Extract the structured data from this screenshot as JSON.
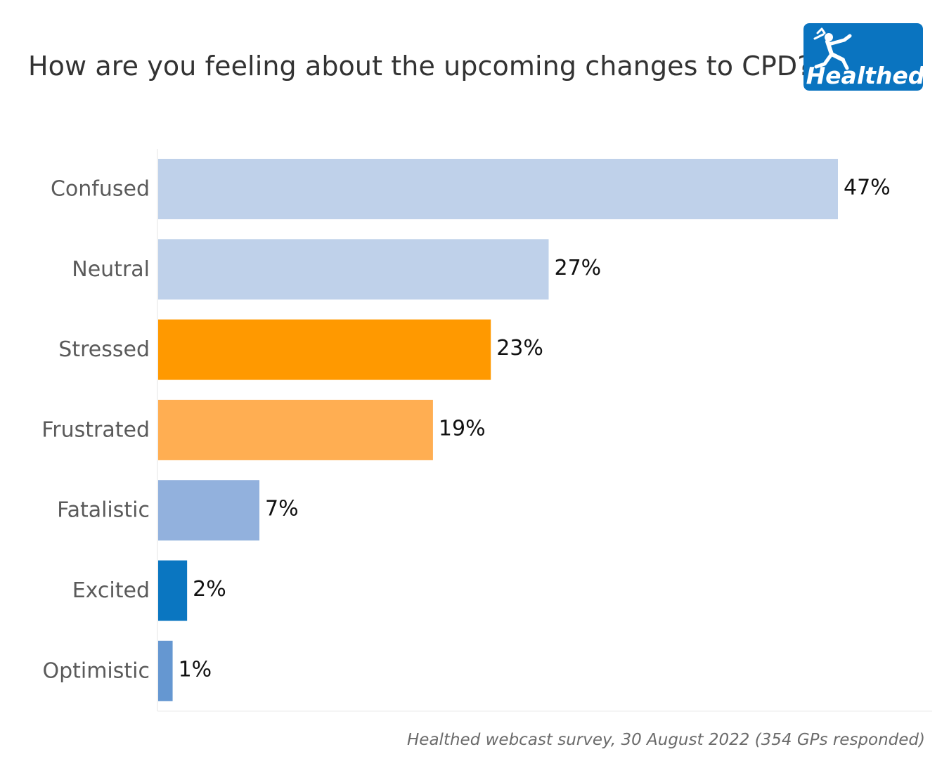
{
  "title": "How are you feeling about the upcoming changes to CPD?",
  "logo": {
    "text": "Healthed",
    "background": "#0a74c0"
  },
  "footer": "Healthed webcast survey, 30 August 2022 (354 GPs responded)",
  "chart_data": {
    "type": "bar",
    "orientation": "horizontal",
    "title": "How are you feeling about the upcoming changes to CPD?",
    "xlabel": "",
    "ylabel": "",
    "unit": "%",
    "xlim": [
      0,
      47
    ],
    "categories": [
      "Confused",
      "Neutral",
      "Stressed",
      "Frustrated",
      "Fatalistic",
      "Excited",
      "Optimistic"
    ],
    "values": [
      47,
      27,
      23,
      19,
      7,
      2,
      1
    ],
    "value_labels": [
      "47%",
      "27%",
      "23%",
      "19%",
      "7%",
      "2%",
      "1%"
    ],
    "colors": [
      "#bfd1ea",
      "#bfd1ea",
      "#ff9900",
      "#ffae52",
      "#92b1dd",
      "#0a76c1",
      "#6597d1"
    ],
    "grid": false,
    "legend": "none"
  }
}
